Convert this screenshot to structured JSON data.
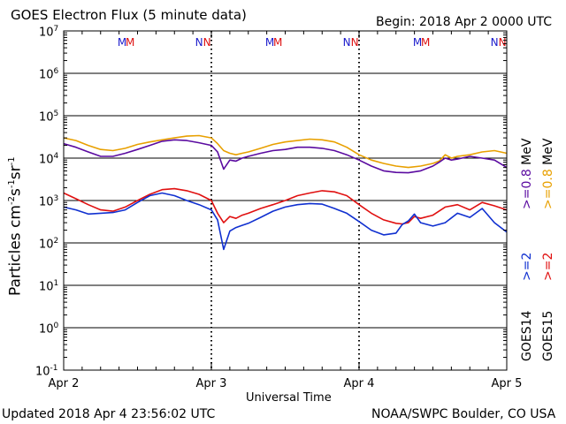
{
  "title": "GOES Electron Flux (5 minute data)",
  "begin_label": "Begin: 2018 Apr 2 0000 UTC",
  "updated_label": "Updated 2018 Apr  4 23:56:02 UTC",
  "credit": "NOAA/SWPC Boulder, CO USA",
  "ylabel_main": "Particles cm",
  "ylabel_exp1": "-2",
  "ylabel_mid1": "s",
  "ylabel_exp2": "-1",
  "ylabel_mid2": "sr",
  "ylabel_exp3": "-1",
  "xlabel": "Universal Time",
  "legend": {
    "goes15_label": "GOES15",
    "goes14_label": "GOES14",
    "red_series_label": ">=2",
    "blue_series_label": ">=2",
    "orange_series_label": ">=0.8",
    "purple_series_label": ">=0.8",
    "unit_low": "MeV",
    "unit_high": "MeV"
  },
  "colors": {
    "goes15_high": "#e8a000",
    "goes14_high": "#5a0aa0",
    "goes15_low": "#e01010",
    "goes14_low": "#1030d0",
    "marker_M_14": "#1a1acc",
    "marker_M_15": "#dd1010"
  },
  "chart_data": {
    "type": "line",
    "yscale": "log",
    "ylim": [
      0.1,
      10000000
    ],
    "yticks": [
      {
        "base": "10",
        "exp": "7",
        "value": 10000000
      },
      {
        "base": "10",
        "exp": "6",
        "value": 1000000
      },
      {
        "base": "10",
        "exp": "5",
        "value": 100000
      },
      {
        "base": "10",
        "exp": "4",
        "value": 10000
      },
      {
        "base": "10",
        "exp": "3",
        "value": 1000
      },
      {
        "base": "10",
        "exp": "2",
        "value": 100
      },
      {
        "base": "10",
        "exp": "1",
        "value": 10
      },
      {
        "base": "10",
        "exp": "0",
        "value": 1
      },
      {
        "base": "10",
        "exp": "-1",
        "value": 0.1
      }
    ],
    "xlim": [
      0,
      72
    ],
    "x_unit": "hours since 2018 Apr 2 0000 UTC",
    "xticks": [
      {
        "label": "Apr 2",
        "value": 0
      },
      {
        "label": "Apr 3",
        "value": 24
      },
      {
        "label": "Apr 4",
        "value": 48
      },
      {
        "label": "Apr 5",
        "value": 72
      }
    ],
    "alert_threshold": 1000,
    "markers": [
      {
        "letter": "M",
        "hour": 9.5,
        "series": "GOES14"
      },
      {
        "letter": "M",
        "hour": 10.8,
        "series": "GOES15"
      },
      {
        "letter": "N",
        "hour": 22.0,
        "series": "GOES14"
      },
      {
        "letter": "N",
        "hour": 23.3,
        "series": "GOES15"
      },
      {
        "letter": "M",
        "hour": 33.5,
        "series": "GOES14"
      },
      {
        "letter": "M",
        "hour": 34.8,
        "series": "GOES15"
      },
      {
        "letter": "N",
        "hour": 46.0,
        "series": "GOES14"
      },
      {
        "letter": "N",
        "hour": 47.3,
        "series": "GOES15"
      },
      {
        "letter": "M",
        "hour": 57.5,
        "series": "GOES14"
      },
      {
        "letter": "M",
        "hour": 58.8,
        "series": "GOES15"
      },
      {
        "letter": "N",
        "hour": 70.0,
        "series": "GOES14"
      },
      {
        "letter": "N",
        "hour": 71.3,
        "series": "GOES15"
      }
    ],
    "series": [
      {
        "name": "GOES15 >=0.8 MeV",
        "color_key": "goes15_high",
        "x": [
          0,
          2,
          4,
          6,
          8,
          10,
          12,
          14,
          16,
          18,
          20,
          22,
          24,
          25,
          26,
          27,
          28,
          29,
          30,
          32,
          34,
          36,
          38,
          40,
          42,
          44,
          46,
          48,
          50,
          52,
          54,
          56,
          58,
          60,
          61,
          62,
          63,
          64,
          66,
          68,
          70,
          72
        ],
        "y": [
          30000,
          26000,
          20000,
          16000,
          15000,
          17000,
          21000,
          24000,
          27000,
          30000,
          33000,
          34000,
          30000,
          22000,
          15000,
          13000,
          12000,
          13000,
          14000,
          17000,
          21000,
          24000,
          26000,
          28000,
          27000,
          24000,
          18000,
          12000,
          9000,
          7500,
          6500,
          6000,
          6500,
          7500,
          8500,
          12000,
          10000,
          11000,
          12000,
          14000,
          15000,
          13000
        ]
      },
      {
        "name": "GOES14 >=0.8 MeV",
        "color_key": "goes14_high",
        "x": [
          0,
          2,
          4,
          6,
          8,
          10,
          12,
          14,
          16,
          18,
          20,
          22,
          24,
          25,
          26,
          27,
          28,
          29,
          30,
          32,
          34,
          36,
          38,
          40,
          42,
          44,
          46,
          48,
          50,
          52,
          54,
          56,
          58,
          60,
          61,
          62,
          63,
          64,
          66,
          68,
          70,
          72
        ],
        "y": [
          22000,
          18000,
          14000,
          11000,
          11000,
          13000,
          16000,
          20000,
          25000,
          27000,
          26000,
          23000,
          20000,
          14000,
          5500,
          9000,
          8500,
          10000,
          11000,
          13000,
          15000,
          16000,
          18000,
          18000,
          17000,
          15000,
          12000,
          9000,
          6500,
          5000,
          4600,
          4500,
          5000,
          6500,
          8000,
          10000,
          9000,
          9500,
          11000,
          10000,
          9000,
          6000
        ]
      },
      {
        "name": "GOES15 >=2 MeV",
        "color_key": "goes15_low",
        "x": [
          0,
          2,
          4,
          6,
          8,
          10,
          12,
          14,
          16,
          18,
          20,
          22,
          24,
          25,
          26,
          27,
          28,
          29,
          30,
          32,
          34,
          36,
          38,
          40,
          42,
          44,
          46,
          48,
          50,
          52,
          54,
          55,
          56,
          57,
          58,
          60,
          62,
          64,
          66,
          68,
          70,
          72
        ],
        "y": [
          1500,
          1100,
          800,
          600,
          560,
          700,
          1000,
          1400,
          1800,
          1900,
          1700,
          1400,
          1000,
          500,
          300,
          420,
          380,
          450,
          500,
          650,
          800,
          1000,
          1300,
          1500,
          1700,
          1600,
          1300,
          800,
          500,
          350,
          290,
          280,
          300,
          420,
          380,
          450,
          700,
          800,
          600,
          900,
          750,
          600
        ]
      },
      {
        "name": "GOES14 >=2 MeV",
        "color_key": "goes14_low",
        "x": [
          0,
          2,
          4,
          6,
          8,
          10,
          12,
          14,
          16,
          18,
          20,
          22,
          24,
          25,
          26,
          27,
          28,
          29,
          30,
          32,
          34,
          36,
          38,
          40,
          42,
          44,
          46,
          48,
          50,
          52,
          54,
          55,
          56,
          57,
          58,
          60,
          62,
          64,
          66,
          68,
          70,
          72
        ],
        "y": [
          700,
          600,
          480,
          500,
          520,
          600,
          900,
          1300,
          1500,
          1300,
          1000,
          800,
          600,
          350,
          70,
          190,
          230,
          260,
          290,
          400,
          560,
          700,
          800,
          850,
          820,
          650,
          500,
          320,
          200,
          155,
          170,
          270,
          330,
          480,
          300,
          250,
          300,
          500,
          400,
          650,
          300,
          180
        ]
      }
    ]
  }
}
